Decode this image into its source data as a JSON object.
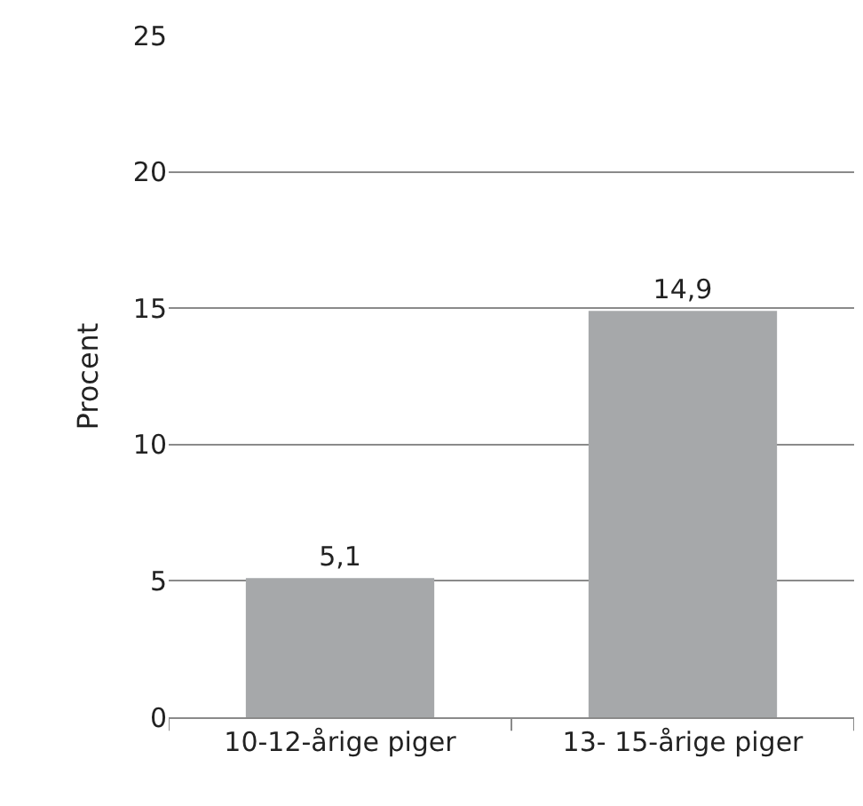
{
  "chart_data": {
    "type": "bar",
    "ylabel": "Procent",
    "categories": [
      "10-12-årige piger",
      "13- 15-årige piger"
    ],
    "values": [
      5.1,
      14.9
    ],
    "value_labels": [
      "5,1",
      "14,9"
    ],
    "color": "#a6a8aa",
    "ylim": [
      0,
      25
    ],
    "yticks": [
      0,
      5,
      10,
      15,
      20,
      25
    ],
    "grid": "y",
    "legend": false
  }
}
